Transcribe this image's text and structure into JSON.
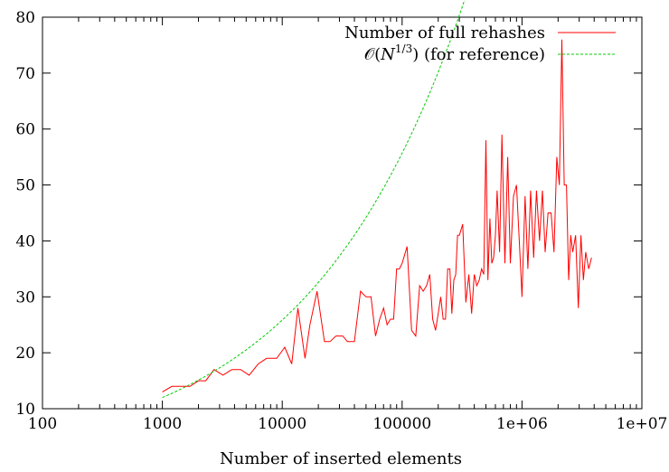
{
  "chart_data": {
    "type": "line",
    "title": "",
    "xlabel": "Number of inserted elements",
    "ylabel": "",
    "xscale": "log",
    "xlim": [
      100,
      10000000
    ],
    "ylim": [
      10,
      80
    ],
    "x_ticks": [
      {
        "value": 100,
        "label": "100"
      },
      {
        "value": 1000,
        "label": "1000"
      },
      {
        "value": 10000,
        "label": "10000"
      },
      {
        "value": 100000,
        "label": "100000"
      },
      {
        "value": 1000000,
        "label": "1e+06"
      },
      {
        "value": 10000000,
        "label": "1e+07"
      }
    ],
    "y_ticks": [
      {
        "value": 10,
        "label": "10"
      },
      {
        "value": 20,
        "label": "20"
      },
      {
        "value": 30,
        "label": "30"
      },
      {
        "value": 40,
        "label": "40"
      },
      {
        "value": 50,
        "label": "50"
      },
      {
        "value": 60,
        "label": "60"
      },
      {
        "value": 70,
        "label": "70"
      },
      {
        "value": 80,
        "label": "80"
      }
    ],
    "grid": false,
    "legend_position": "top-right",
    "series": [
      {
        "name": "Number of full rehashes",
        "color": "#ff0000",
        "style": "solid",
        "x": [
          1000,
          1200,
          1400,
          1700,
          2000,
          2300,
          2700,
          3200,
          3800,
          4500,
          5300,
          6300,
          7400,
          8000,
          9000,
          10500,
          12000,
          13500,
          15500,
          17000,
          19500,
          22500,
          25000,
          28000,
          32000,
          35000,
          40000,
          45000,
          50000,
          55000,
          60000,
          65000,
          70000,
          75000,
          80000,
          85000,
          90000,
          95000,
          100000,
          110000,
          120000,
          130000,
          140000,
          150000,
          160000,
          170000,
          180000,
          190000,
          200000,
          210000,
          220000,
          230000,
          240000,
          250000,
          260000,
          270000,
          280000,
          290000,
          300000,
          310000,
          320000,
          340000,
          360000,
          380000,
          400000,
          420000,
          440000,
          460000,
          480000,
          500000,
          520000,
          540000,
          560000,
          580000,
          600000,
          620000,
          650000,
          680000,
          720000,
          760000,
          800000,
          850000,
          900000,
          950000,
          1000000,
          1060000,
          1120000,
          1180000,
          1250000,
          1320000,
          1400000,
          1480000,
          1560000,
          1650000,
          1750000,
          1850000,
          1950000,
          2050000,
          2150000,
          2250000,
          2350000,
          2450000,
          2550000,
          2650000,
          2800000,
          2950000,
          3100000,
          3250000,
          3400000,
          3600000,
          3800000
        ],
        "values": [
          13,
          14,
          14,
          14,
          15,
          15,
          17,
          16,
          17,
          17,
          16,
          18,
          19,
          19,
          19,
          21,
          18,
          28,
          19,
          25,
          31,
          22,
          22,
          23,
          23,
          22,
          22,
          31,
          30,
          30,
          23,
          26,
          28,
          25,
          26,
          26,
          35,
          35,
          36,
          39,
          24,
          23,
          32,
          31,
          32,
          34,
          26,
          24,
          27,
          30,
          26,
          26,
          35,
          35,
          27,
          33,
          34,
          41,
          41,
          42,
          43,
          29,
          34,
          27,
          34,
          32,
          33,
          35,
          34,
          58,
          33,
          44,
          36,
          37,
          41,
          49,
          38,
          59,
          36,
          55,
          36,
          48,
          50,
          40,
          30,
          48,
          35,
          49,
          37,
          49,
          40,
          49,
          38,
          45,
          45,
          38,
          55,
          50,
          76,
          50,
          50,
          33,
          41,
          38,
          41,
          28,
          41,
          33,
          38,
          35,
          37
        ]
      },
      {
        "name": "$\\mathcal{O}(N^{1/3})$ (for reference)",
        "legend_text": {
          "o": "𝒪",
          "open": "(",
          "n": "N",
          "exp": "1/3",
          "close": ")",
          "suffix": " (for reference)"
        },
        "color": "#00cc00",
        "style": "dashed",
        "formula": "y = 1.2 * x^(1/3)",
        "x_range": [
          1000,
          3800000
        ]
      }
    ]
  }
}
